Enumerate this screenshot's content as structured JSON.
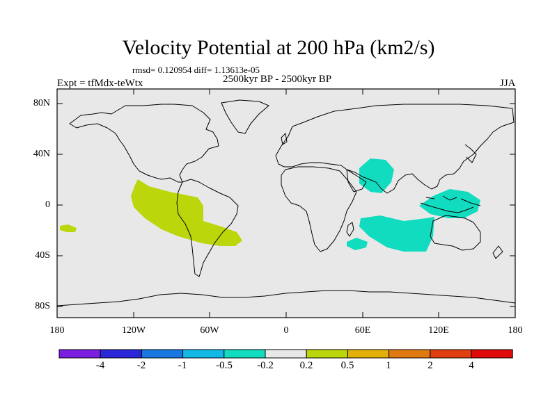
{
  "title": "Velocity Potential at 200 hPa (km2/s)",
  "stats": "rmsd= 0.120954  diff= 1.13613e-05",
  "experiment": "Expt = tfMdx-teWtx",
  "period": "2500kyr BP - 2500kyr BP",
  "season": "JJA",
  "lat_labels": [
    "80N",
    "40N",
    "0",
    "40S",
    "80S"
  ],
  "lon_labels": [
    "180",
    "120W",
    "60W",
    "0",
    "60E",
    "120E",
    "180"
  ],
  "colorbar": {
    "labels": [
      "-4",
      "-2",
      "-1",
      "-0.5",
      "-0.2",
      "0.2",
      "0.5",
      "1",
      "2",
      "4"
    ],
    "colors": [
      "#7a1fe0",
      "#2a28d8",
      "#1877e0",
      "#12b8e6",
      "#12dcc0",
      "#e8e8e8",
      "#bcd60c",
      "#e2b008",
      "#e07a10",
      "#e04010",
      "#e00a0a"
    ]
  },
  "map_colors": {
    "background": "#e8e8e8",
    "positive": "#bcd60c",
    "negative": "#12dcc0",
    "coast": "#000000"
  }
}
